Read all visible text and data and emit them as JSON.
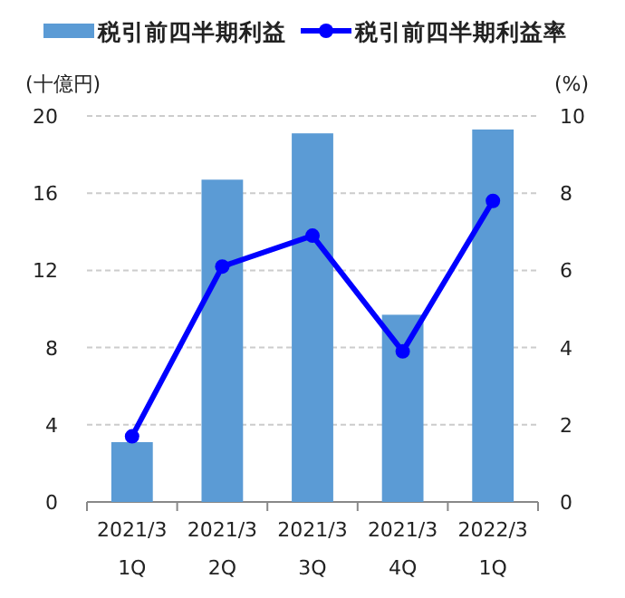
{
  "chart_data": {
    "type": "bar",
    "categories": [
      "2021/3\n1Q",
      "2021/3\n2Q",
      "2021/3\n3Q",
      "2021/3\n4Q",
      "2022/3\n1Q"
    ],
    "series": [
      {
        "name": "税引前四半期利益",
        "color": "#5b9bd5",
        "values": [
          3.1,
          16.7,
          19.1,
          9.7,
          19.3
        ]
      },
      {
        "name": "税引前四半期利益率",
        "type": "line",
        "axis": "y2",
        "color": "#0000ff",
        "values": [
          1.7,
          6.1,
          6.9,
          3.9,
          7.8
        ]
      }
    ],
    "ylabel": "(十億円)",
    "y2label": "(%)",
    "ylim": [
      0,
      20
    ],
    "yticks": [
      0,
      4,
      8,
      12,
      16,
      20
    ],
    "y2lim": [
      0,
      10
    ],
    "y2ticks": [
      0,
      2,
      4,
      6,
      8,
      10
    ],
    "grid": "y",
    "legend": "top",
    "marker": "circle",
    "line_style": "solid"
  }
}
